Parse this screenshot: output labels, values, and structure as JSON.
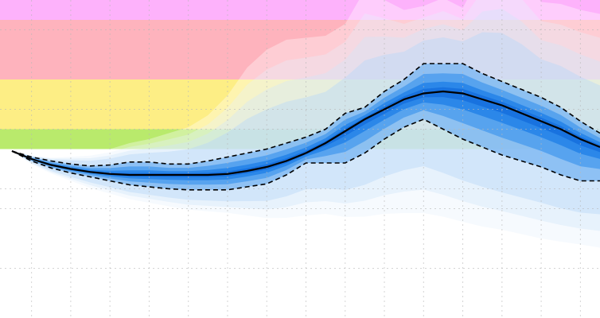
{
  "chart_data": {
    "type": "area",
    "title": "",
    "xlabel": "",
    "ylabel": "",
    "grid": true,
    "legend": "none",
    "xlim": [
      0,
      15
    ],
    "ylim": [
      -5,
      11
    ],
    "background_bands": [
      {
        "from": 3.5,
        "to": 4.5,
        "color": "#b9ea6c"
      },
      {
        "from": 4.5,
        "to": 7.0,
        "color": "#fdee85"
      },
      {
        "from": 7.0,
        "to": 10.0,
        "color": "#feb3bd"
      },
      {
        "from": 10.0,
        "to": 11.0,
        "color": "#fdb2fb"
      }
    ],
    "x": [
      0,
      0.5,
      1,
      1.5,
      2,
      2.5,
      3,
      3.5,
      4,
      4.5,
      5,
      5.5,
      6,
      6.5,
      7,
      7.5,
      8,
      8.5,
      9,
      9.5,
      10,
      10.5,
      11,
      11.5,
      12,
      12.5,
      13,
      13.5,
      14,
      14.5,
      15
    ],
    "series": [
      {
        "values": [
          3.4,
          3.0,
          2.7,
          2.5,
          2.35,
          2.25,
          2.2,
          2.2,
          2.2,
          2.2,
          2.2,
          2.25,
          2.4,
          2.6,
          2.9,
          3.3,
          3.8,
          4.4,
          5.0,
          5.5,
          6.0,
          6.3,
          6.4,
          6.3,
          6.0,
          5.7,
          5.3,
          4.9,
          4.5,
          4.0,
          3.6
        ]
      },
      {
        "values": [
          3.4,
          3.1,
          2.9,
          2.75,
          2.65,
          2.7,
          2.85,
          2.85,
          2.75,
          2.75,
          2.9,
          3.1,
          3.3,
          3.5,
          3.8,
          4.1,
          4.5,
          5.3,
          5.6,
          6.4,
          7.0,
          7.8,
          7.8,
          7.8,
          7.3,
          6.9,
          6.5,
          6.1,
          5.6,
          4.9,
          4.3
        ]
      },
      {
        "values": [
          3.4,
          2.9,
          2.55,
          2.3,
          2.1,
          1.9,
          1.7,
          1.6,
          1.5,
          1.45,
          1.45,
          1.45,
          1.6,
          1.75,
          2.2,
          2.8,
          2.8,
          2.8,
          3.3,
          4.0,
          4.6,
          5.0,
          4.5,
          4.0,
          3.6,
          3.2,
          2.9,
          2.6,
          2.2,
          1.9,
          1.9
        ]
      }
    ],
    "spread_upper": [
      3.4,
      3.2,
      3.1,
      3.2,
      3.3,
      3.5,
      3.8,
      4.0,
      4.3,
      4.6,
      5.2,
      6.2,
      7.6,
      8.5,
      9.0,
      9.1,
      9.2,
      9.8,
      11.5,
      11.0,
      10.5,
      10.7,
      11.1,
      10.6,
      12.5,
      13.0,
      12.2,
      10.9,
      10.8,
      10.5,
      10.3
    ],
    "spread_lower": [
      3.4,
      2.7,
      2.2,
      1.8,
      1.4,
      1.1,
      0.8,
      0.6,
      0.4,
      0.2,
      0.1,
      0.0,
      -0.2,
      -0.4,
      -0.5,
      -0.5,
      -0.4,
      -0.6,
      -0.7,
      -0.7,
      -0.8,
      -0.9,
      -1.0,
      -1.2,
      -1.4,
      -1.5,
      -1.7,
      -1.9,
      -2.0,
      -2.1,
      -2.3
    ],
    "grid_x": [
      0.5,
      1.5,
      2.5,
      3.5,
      4.5,
      5.5,
      6.5,
      7.5,
      8.5,
      9.5,
      10.5,
      11.5,
      12.5,
      13.5,
      14.5
    ],
    "grid_y": [
      -2.5,
      0.5,
      1.5,
      4.5,
      5.5,
      9.5
    ]
  },
  "colors": {
    "median": "#000000",
    "band_core": "#1e7ae6",
    "band_mid": "#5aa6f0",
    "band_outer": "#c7e0fb",
    "background": "#ffffff"
  }
}
